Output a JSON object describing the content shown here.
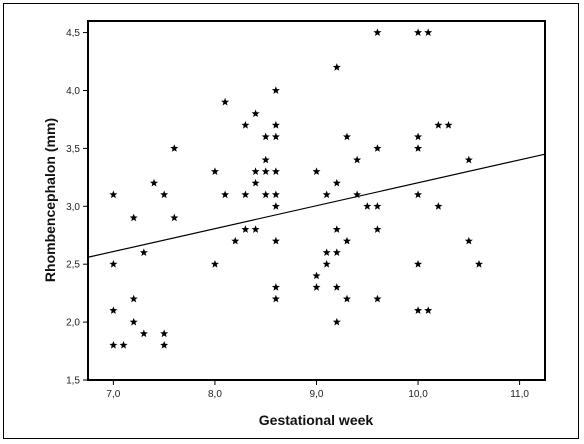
{
  "chart_data": {
    "type": "scatter",
    "title": "",
    "xlabel": "Gestational week",
    "ylabel": "Rhombencephalon (mm)",
    "xlim": [
      6.75,
      11.25
    ],
    "ylim": [
      1.5,
      4.6
    ],
    "x_ticks": [
      7.0,
      8.0,
      9.0,
      10.0,
      11.0
    ],
    "x_tick_labels": [
      "7,0",
      "8,0",
      "9,0",
      "10,0",
      "11,0"
    ],
    "y_ticks": [
      1.5,
      2.0,
      2.5,
      3.0,
      3.5,
      4.0,
      4.5
    ],
    "y_tick_labels": [
      "1,5",
      "2,0",
      "2,5",
      "3,0",
      "3,5",
      "4,0",
      "4,5"
    ],
    "grid": false,
    "series": [
      {
        "marker": "star",
        "color": "#000000",
        "points": [
          [
            7.0,
            3.1
          ],
          [
            7.0,
            2.5
          ],
          [
            7.0,
            2.1
          ],
          [
            7.0,
            1.8
          ],
          [
            7.1,
            1.8
          ],
          [
            7.2,
            2.9
          ],
          [
            7.2,
            2.2
          ],
          [
            7.2,
            2.0
          ],
          [
            7.3,
            2.6
          ],
          [
            7.3,
            1.9
          ],
          [
            7.4,
            3.2
          ],
          [
            7.5,
            3.1
          ],
          [
            7.5,
            1.9
          ],
          [
            7.5,
            1.8
          ],
          [
            7.6,
            3.5
          ],
          [
            7.6,
            2.9
          ],
          [
            8.0,
            3.3
          ],
          [
            8.0,
            2.5
          ],
          [
            8.1,
            3.9
          ],
          [
            8.1,
            3.1
          ],
          [
            8.2,
            2.7
          ],
          [
            8.3,
            3.7
          ],
          [
            8.3,
            3.1
          ],
          [
            8.3,
            2.8
          ],
          [
            8.4,
            3.8
          ],
          [
            8.4,
            3.3
          ],
          [
            8.4,
            3.2
          ],
          [
            8.4,
            2.8
          ],
          [
            8.5,
            3.6
          ],
          [
            8.5,
            3.4
          ],
          [
            8.5,
            3.3
          ],
          [
            8.5,
            3.1
          ],
          [
            8.6,
            4.0
          ],
          [
            8.6,
            3.7
          ],
          [
            8.6,
            3.6
          ],
          [
            8.6,
            3.3
          ],
          [
            8.6,
            3.1
          ],
          [
            8.6,
            3.0
          ],
          [
            8.6,
            2.7
          ],
          [
            8.6,
            2.3
          ],
          [
            8.6,
            2.2
          ],
          [
            9.0,
            3.3
          ],
          [
            9.0,
            2.4
          ],
          [
            9.0,
            2.3
          ],
          [
            9.1,
            3.1
          ],
          [
            9.1,
            2.6
          ],
          [
            9.1,
            2.5
          ],
          [
            9.2,
            4.2
          ],
          [
            9.2,
            3.2
          ],
          [
            9.2,
            2.8
          ],
          [
            9.2,
            2.6
          ],
          [
            9.2,
            2.3
          ],
          [
            9.2,
            2.0
          ],
          [
            9.3,
            3.6
          ],
          [
            9.3,
            2.7
          ],
          [
            9.3,
            2.2
          ],
          [
            9.4,
            3.4
          ],
          [
            9.4,
            3.1
          ],
          [
            9.5,
            3.0
          ],
          [
            9.6,
            4.5
          ],
          [
            9.6,
            3.5
          ],
          [
            9.6,
            3.0
          ],
          [
            9.6,
            2.8
          ],
          [
            9.6,
            2.2
          ],
          [
            10.0,
            4.5
          ],
          [
            10.0,
            3.6
          ],
          [
            10.0,
            3.5
          ],
          [
            10.0,
            3.1
          ],
          [
            10.0,
            2.5
          ],
          [
            10.0,
            2.1
          ],
          [
            10.1,
            4.5
          ],
          [
            10.1,
            2.1
          ],
          [
            10.2,
            3.7
          ],
          [
            10.2,
            3.0
          ],
          [
            10.3,
            3.7
          ],
          [
            10.5,
            3.4
          ],
          [
            10.5,
            2.7
          ],
          [
            10.6,
            2.5
          ]
        ]
      }
    ],
    "fit_line": {
      "x": [
        6.75,
        11.25
      ],
      "y": [
        2.56,
        3.45
      ]
    }
  }
}
